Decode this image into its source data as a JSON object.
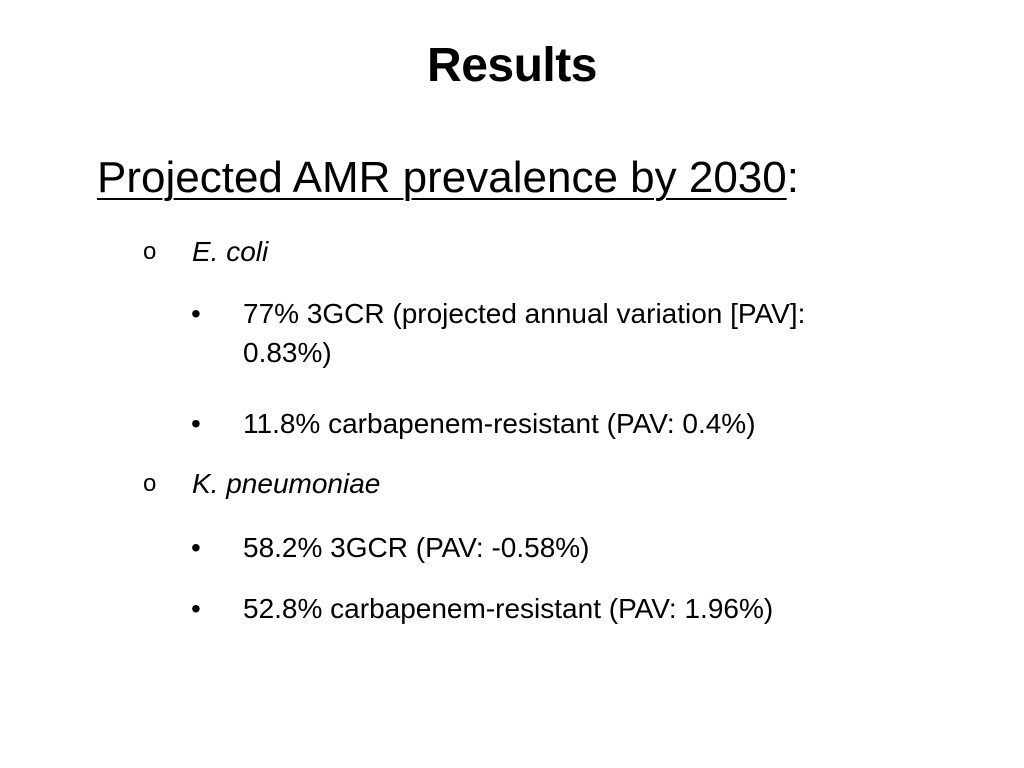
{
  "title": "Results",
  "subheading": {
    "text": "Projected AMR prevalence by 2030",
    "suffix": ":"
  },
  "sections": [
    {
      "marker": "o",
      "organism": "E. coli",
      "items": [
        {
          "marker": "•",
          "text": "77% 3GCR (projected annual variation [PAV]: 0.83%)"
        },
        {
          "marker": "•",
          "text": "11.8% carbapenem-resistant (PAV: 0.4%)"
        }
      ]
    },
    {
      "marker": "o",
      "organism": "K. pneumoniae",
      "items": [
        {
          "marker": "•",
          "text": "58.2% 3GCR (PAV: -0.58%)"
        },
        {
          "marker": "•",
          "text": "52.8% carbapenem-resistant (PAV: 1.96%)"
        }
      ]
    }
  ]
}
